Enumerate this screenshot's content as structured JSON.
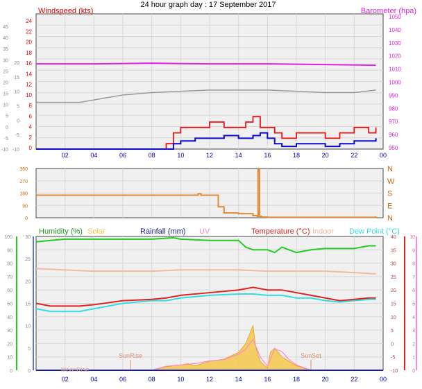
{
  "colors": {
    "plot_bg": "#f0f0f0",
    "grid": "#d8d8d8",
    "wind_red": "#ee1111",
    "wind_blue": "#0a0acc",
    "baro": "#dd22dd",
    "temp_line": "#999999",
    "wind_dir": "#e08a3a",
    "humidity": "#22cc22",
    "solar": "#f5c542",
    "rain": "#1a1aa0",
    "uv": "#ff88cc",
    "temp": "#dd2222",
    "indoor": "#f2b8a0",
    "dewpoint": "#33dddd",
    "axis_blue": "#0000aa",
    "axis_grey": "#888888"
  },
  "chart_data": [
    {
      "type": "line",
      "title": "24 hour graph day : 17 September 2017",
      "xlabel": "",
      "x_ticks": [
        "02",
        "04",
        "06",
        "08",
        "10",
        "12",
        "14",
        "16",
        "18",
        "20",
        "22",
        "00"
      ],
      "legend": [
        {
          "label": "Windspeed (kts)",
          "color_key": "wind_red"
        },
        {
          "label": "Barometer (hpa)",
          "color_key": "baro"
        }
      ],
      "left_axis_ticks": [
        "24",
        "22",
        "20",
        "18",
        "16",
        "14",
        "12",
        "10",
        "8",
        "6",
        "4",
        "2",
        "0"
      ],
      "inner_left_ticks": [
        "20",
        "15",
        "10",
        "5",
        "0",
        "-5",
        "-10"
      ],
      "outer_left_ticks": [
        "45",
        "40",
        "35",
        "30",
        "25",
        "20",
        "15",
        "10",
        "5",
        "0",
        "-5",
        "-10"
      ],
      "right_axis_ticks": [
        "1050",
        "1040",
        "1030",
        "1020",
        "1010",
        "1000",
        "990",
        "980",
        "970",
        "960",
        "950"
      ],
      "ylim_wind": [
        0,
        25
      ],
      "ylim_baro": [
        950,
        1050
      ],
      "series": [
        {
          "name": "Barometer (hpa)",
          "axis": "right",
          "color_key": "baro",
          "x": [
            0,
            4,
            8,
            12,
            16,
            20,
            23.5
          ],
          "values": [
            1013,
            1013,
            1013.5,
            1013,
            1013,
            1012.5,
            1012
          ]
        },
        {
          "name": "Windspeed (kts)",
          "axis": "left",
          "color_key": "wind_red",
          "x": [
            0,
            8.8,
            9.0,
            9.5,
            10,
            11,
            12,
            13,
            14,
            14.5,
            15,
            15.5,
            16,
            16.5,
            17,
            17.5,
            18,
            19,
            20,
            21,
            22,
            23,
            23.5
          ],
          "values": [
            0,
            0,
            1,
            3,
            4,
            4,
            5,
            4,
            4,
            5,
            6,
            4,
            4,
            3,
            2,
            2,
            3,
            3,
            2,
            3,
            4,
            3,
            4
          ]
        },
        {
          "name": "Wind Gust",
          "axis": "left",
          "color_key": "wind_blue",
          "x": [
            0,
            8.8,
            9.5,
            10,
            11,
            12,
            13,
            14,
            14.5,
            15,
            15.5,
            16,
            16.5,
            17,
            17.5,
            18,
            19,
            20,
            21,
            22,
            23,
            23.5
          ],
          "values": [
            0,
            0,
            1,
            1.5,
            2,
            2,
            2.5,
            2,
            2,
            2.5,
            3,
            2,
            1,
            0.5,
            0.5,
            1,
            1,
            0.5,
            1,
            1.5,
            1.5,
            2
          ]
        },
        {
          "name": "Temperature",
          "axis": "outer_left",
          "color_key": "temp_line",
          "x": [
            0,
            3,
            4,
            5,
            6,
            8,
            10,
            12,
            14,
            16,
            18,
            20,
            22,
            23.5
          ],
          "values": [
            9,
            9,
            10,
            11,
            12,
            13,
            13.5,
            14,
            14,
            14,
            13.5,
            13,
            13,
            14
          ]
        }
      ]
    },
    {
      "type": "line",
      "title": "",
      "x_ticks": [
        "02",
        "04",
        "06",
        "08",
        "10",
        "12",
        "14",
        "16",
        "18",
        "20",
        "22",
        "00"
      ],
      "left_ticks": [
        "360",
        "270",
        "180",
        "90",
        "0"
      ],
      "right_ticks": [
        "N",
        "W",
        "S",
        "E",
        "N"
      ],
      "ylim": [
        0,
        360
      ],
      "series": [
        {
          "name": "Wind Direction",
          "color_key": "wind_dir",
          "x": [
            0,
            5,
            10,
            11,
            11.2,
            11.4,
            12,
            12.5,
            12.6,
            13,
            14,
            15,
            15.3,
            15.35,
            15.4,
            15.45,
            15.6,
            16,
            20,
            23.5
          ],
          "values": [
            165,
            165,
            165,
            165,
            175,
            165,
            165,
            165,
            80,
            35,
            30,
            15,
            10,
            350,
            355,
            10,
            5,
            3,
            3,
            10
          ]
        }
      ]
    },
    {
      "type": "line",
      "title": "",
      "x_ticks": [
        "02",
        "04",
        "06",
        "08",
        "10",
        "12",
        "14",
        "16",
        "18",
        "20",
        "22",
        "00"
      ],
      "legend": [
        {
          "label": "Humidity (%)",
          "color_key": "humidity"
        },
        {
          "label": "Solar",
          "color_key": "solar"
        },
        {
          "label": "Rainfall (mm)",
          "color_key": "rain"
        },
        {
          "label": "UV",
          "color_key": "uv"
        },
        {
          "label": "Temperature (°C)",
          "color_key": "temp"
        },
        {
          "label": "Indoor",
          "color_key": "indoor"
        },
        {
          "label": "Dew Point (°C)",
          "color_key": "dewpoint"
        }
      ],
      "annotations": [
        "SunRise",
        "SunSet",
        "MoonRise"
      ],
      "left_ticks": [
        "100",
        "90",
        "80",
        "70",
        "60",
        "50",
        "40",
        "30",
        "20",
        "10",
        "0"
      ],
      "inner_left_ticks": [
        "30",
        "25",
        "20",
        "15",
        "10",
        "5",
        "0"
      ],
      "right_ticks": [
        "40",
        "35",
        "30",
        "25",
        "20",
        "15",
        "10",
        "5",
        "0",
        "-5",
        "-10"
      ],
      "uv_ticks": [
        "10",
        "9",
        "8",
        "7",
        "6",
        "5",
        "4",
        "3",
        "2",
        "1",
        "0"
      ],
      "ylim_temp": [
        -10,
        40
      ],
      "series": [
        {
          "name": "Humidity (%)",
          "axis": "left",
          "color_key": "humidity",
          "x": [
            0,
            1,
            2,
            4,
            6,
            8,
            9.5,
            10,
            12,
            14,
            14.5,
            15,
            16,
            16.5,
            17,
            18,
            19,
            20,
            22,
            23,
            23.5
          ],
          "values": [
            96,
            97,
            98,
            98,
            98,
            98,
            99,
            98,
            97,
            97,
            92,
            90,
            90,
            88,
            92,
            88,
            90,
            91,
            91,
            93,
            93
          ]
        },
        {
          "name": "Indoor",
          "axis": "right",
          "color_key": "indoor",
          "x": [
            0,
            2,
            4,
            6,
            8,
            10,
            12,
            14,
            16,
            18,
            20,
            22,
            23.5
          ],
          "values": [
            28,
            27.5,
            27,
            27,
            27,
            27.5,
            27.5,
            27.5,
            27,
            27,
            27,
            26.5,
            26
          ]
        },
        {
          "name": "Temperature (°C)",
          "axis": "right",
          "color_key": "temp",
          "x": [
            0,
            1,
            3,
            4,
            6,
            8,
            9,
            10,
            12,
            14,
            15,
            16,
            17,
            18,
            19,
            20,
            21,
            22,
            23,
            23.5
          ],
          "values": [
            15,
            14,
            14,
            14.5,
            16,
            16.5,
            17,
            18,
            19,
            20,
            21,
            20,
            20,
            19,
            18,
            17,
            16,
            16.5,
            17,
            17
          ]
        },
        {
          "name": "Dew Point (°C)",
          "axis": "right",
          "color_key": "dewpoint",
          "x": [
            0,
            1,
            3,
            4,
            6,
            8,
            9,
            10,
            12,
            14,
            15,
            16,
            17,
            18,
            19,
            20,
            21,
            22,
            23,
            23.5
          ],
          "values": [
            13,
            12,
            12,
            13,
            15,
            16,
            16,
            17,
            18,
            18.5,
            18.5,
            18,
            18,
            17,
            17,
            16,
            15.5,
            16,
            16.5,
            16.5
          ]
        },
        {
          "name": "Solar",
          "axis": "inner_left",
          "color_key": "solar",
          "x": [
            0,
            8,
            9,
            10,
            10.5,
            11,
            12,
            13,
            14,
            14.5,
            15,
            15.2,
            15.5,
            16,
            16.2,
            16.5,
            17,
            17.5,
            18,
            18.5,
            19,
            24
          ],
          "values": [
            0,
            0,
            0.8,
            1.2,
            1.5,
            1,
            2,
            2.5,
            4,
            6,
            10,
            5,
            2,
            0.5,
            4,
            5,
            3,
            2,
            1,
            0.5,
            0,
            0
          ]
        },
        {
          "name": "UV",
          "axis": "uv",
          "color_key": "uv",
          "x": [
            0,
            8,
            9,
            10,
            11,
            12,
            13,
            14,
            14.5,
            15,
            15.5,
            16,
            16.5,
            17,
            17.5,
            18,
            19,
            24
          ],
          "values": [
            0,
            0,
            0.3,
            0.4,
            0.5,
            0.7,
            0.8,
            1.2,
            1.6,
            2.3,
            1,
            0.3,
            1.6,
            1.4,
            0.8,
            0.4,
            0,
            0
          ]
        },
        {
          "name": "Rainfall (mm)",
          "axis": "inner_left",
          "color_key": "rain",
          "x": [
            0,
            24
          ],
          "values": [
            0,
            0
          ]
        }
      ]
    }
  ]
}
